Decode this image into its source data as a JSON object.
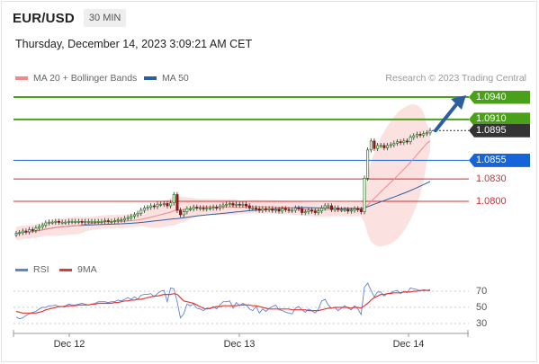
{
  "header": {
    "symbol": "EUR/USD",
    "timeframe": "30 MIN"
  },
  "datetime": "Thursday, December 14, 2023 3:09:21 AM CET",
  "legend": {
    "ma20": {
      "label": "MA 20 + Bollinger Bands",
      "color": "#f08a8a"
    },
    "ma50": {
      "label": "MA 50",
      "color": "#2d5fa0"
    },
    "credit": "Research © 2023 Trading Central"
  },
  "levels": [
    {
      "label": "1.0940",
      "value": 1.094,
      "kind": "resistance",
      "color": "#4aa019"
    },
    {
      "label": "1.0910",
      "value": 1.091,
      "kind": "resistance",
      "color": "#4aa019"
    },
    {
      "label": "1.0895",
      "value": 1.0895,
      "kind": "last",
      "color": "#333333"
    },
    {
      "label": "1.0855",
      "value": 1.0855,
      "kind": "pivot",
      "color": "#1565d8"
    },
    {
      "label": "1.0830",
      "value": 1.083,
      "kind": "support",
      "color": "#d32f2f"
    },
    {
      "label": "1.0800",
      "value": 1.08,
      "kind": "support",
      "color": "#d32f2f"
    }
  ],
  "rsi_legend": {
    "rsi": {
      "label": "RSI",
      "color": "#5b84d6"
    },
    "ma9": {
      "label": "9MA",
      "color": "#e53935"
    }
  },
  "rsi_levels": [
    "70",
    "50",
    "30"
  ],
  "x_labels": [
    "Dec 12",
    "Dec 13",
    "Dec 14"
  ],
  "chart_data": {
    "type": "candlestick",
    "price_range": [
      1.0755,
      1.0955
    ],
    "rsi_range": [
      20,
      80
    ],
    "forecast": "up",
    "close": [
      1.0757,
      1.0758,
      1.076,
      1.0759,
      1.0762,
      1.0761,
      1.0764,
      1.0766,
      1.0768,
      1.0771,
      1.0772,
      1.0772,
      1.0773,
      1.0772,
      1.0772,
      1.0772,
      1.0773,
      1.0773,
      1.0773,
      1.0773,
      1.0772,
      1.0773,
      1.0773,
      1.0773,
      1.0773,
      1.0773,
      1.0773,
      1.0774,
      1.0773,
      1.0773,
      1.0774,
      1.0775,
      1.0775,
      1.0777,
      1.0778,
      1.078,
      1.0782,
      1.0784,
      1.0788,
      1.0791,
      1.0792,
      1.0794,
      1.0793,
      1.0796,
      1.0796,
      1.0797,
      1.0794,
      1.0798,
      1.0809,
      1.0788,
      1.0782,
      1.0786,
      1.079,
      1.079,
      1.0792,
      1.0791,
      1.0791,
      1.079,
      1.0791,
      1.0791,
      1.0792,
      1.0791,
      1.0793,
      1.0795,
      1.0796,
      1.0797,
      1.0795,
      1.0796,
      1.0795,
      1.0796,
      1.0794,
      1.0791,
      1.0791,
      1.079,
      1.0788,
      1.079,
      1.0789,
      1.079,
      1.0788,
      1.0789,
      1.0787,
      1.079,
      1.0789,
      1.0788,
      1.0788,
      1.0791,
      1.079,
      1.0785,
      1.0786,
      1.0788,
      1.0787,
      1.0785,
      1.0787,
      1.0791,
      1.0794,
      1.0794,
      1.0789,
      1.0791,
      1.0789,
      1.0789,
      1.0789,
      1.0787,
      1.0788,
      1.079,
      1.0789,
      1.0786,
      1.0831,
      1.0869,
      1.0881,
      1.0871,
      1.0875,
      1.0875,
      1.0872,
      1.0875,
      1.0876,
      1.0878,
      1.088,
      1.0879,
      1.0881,
      1.088,
      1.0886,
      1.0888,
      1.089,
      1.0889,
      1.0891,
      1.0892,
      1.0895
    ],
    "rsi": [
      38,
      36,
      37,
      40,
      42,
      44,
      45,
      48,
      50,
      50,
      52,
      52,
      53,
      51,
      51,
      52,
      54,
      53,
      53,
      54,
      55,
      54,
      53,
      54,
      55,
      57,
      57,
      57,
      56,
      57,
      57,
      59,
      58,
      60,
      62,
      60,
      63,
      60,
      65,
      66,
      66,
      67,
      63,
      67,
      70,
      71,
      57,
      74,
      73,
      57,
      37,
      42,
      54,
      52,
      54,
      49,
      48,
      46,
      49,
      48,
      51,
      48,
      53,
      57,
      57,
      58,
      49,
      56,
      52,
      55,
      53,
      48,
      46,
      51,
      43,
      48,
      45,
      49,
      51,
      53,
      47,
      46,
      44,
      43,
      42,
      49,
      51,
      47,
      44,
      48,
      46,
      43,
      48,
      58,
      60,
      53,
      49,
      50,
      46,
      49,
      52,
      49,
      47,
      52,
      48,
      41,
      75,
      80,
      71,
      63,
      69,
      69,
      64,
      67,
      68,
      70,
      71,
      67,
      70,
      68,
      74,
      73,
      72,
      70,
      72,
      71,
      72
    ],
    "rsi_ma9": [
      45,
      44,
      43,
      43,
      43,
      43,
      43,
      44,
      45,
      47,
      48,
      49,
      50,
      51,
      51,
      51,
      52,
      52,
      52,
      53,
      53,
      53,
      53,
      54,
      54,
      55,
      55,
      55,
      55,
      55,
      56,
      56,
      57,
      58,
      58,
      59,
      59,
      60,
      60,
      61,
      62,
      63,
      64,
      64,
      65,
      66,
      66,
      66,
      67,
      66,
      62,
      58,
      57,
      56,
      55,
      53,
      51,
      49,
      48,
      49,
      50,
      51,
      51,
      52,
      52,
      52,
      52,
      52,
      53,
      53,
      53,
      53,
      52,
      52,
      51,
      50,
      49,
      48,
      48,
      48,
      48,
      48,
      48,
      48,
      47,
      47,
      47,
      47,
      47,
      46,
      46,
      46,
      46,
      47,
      48,
      49,
      49,
      50,
      50,
      50,
      50,
      50,
      49,
      50,
      50,
      49,
      52,
      55,
      59,
      62,
      64,
      66,
      66,
      67,
      67,
      68,
      68,
      68,
      69,
      69,
      69,
      70,
      70,
      71,
      71,
      71,
      71
    ]
  }
}
